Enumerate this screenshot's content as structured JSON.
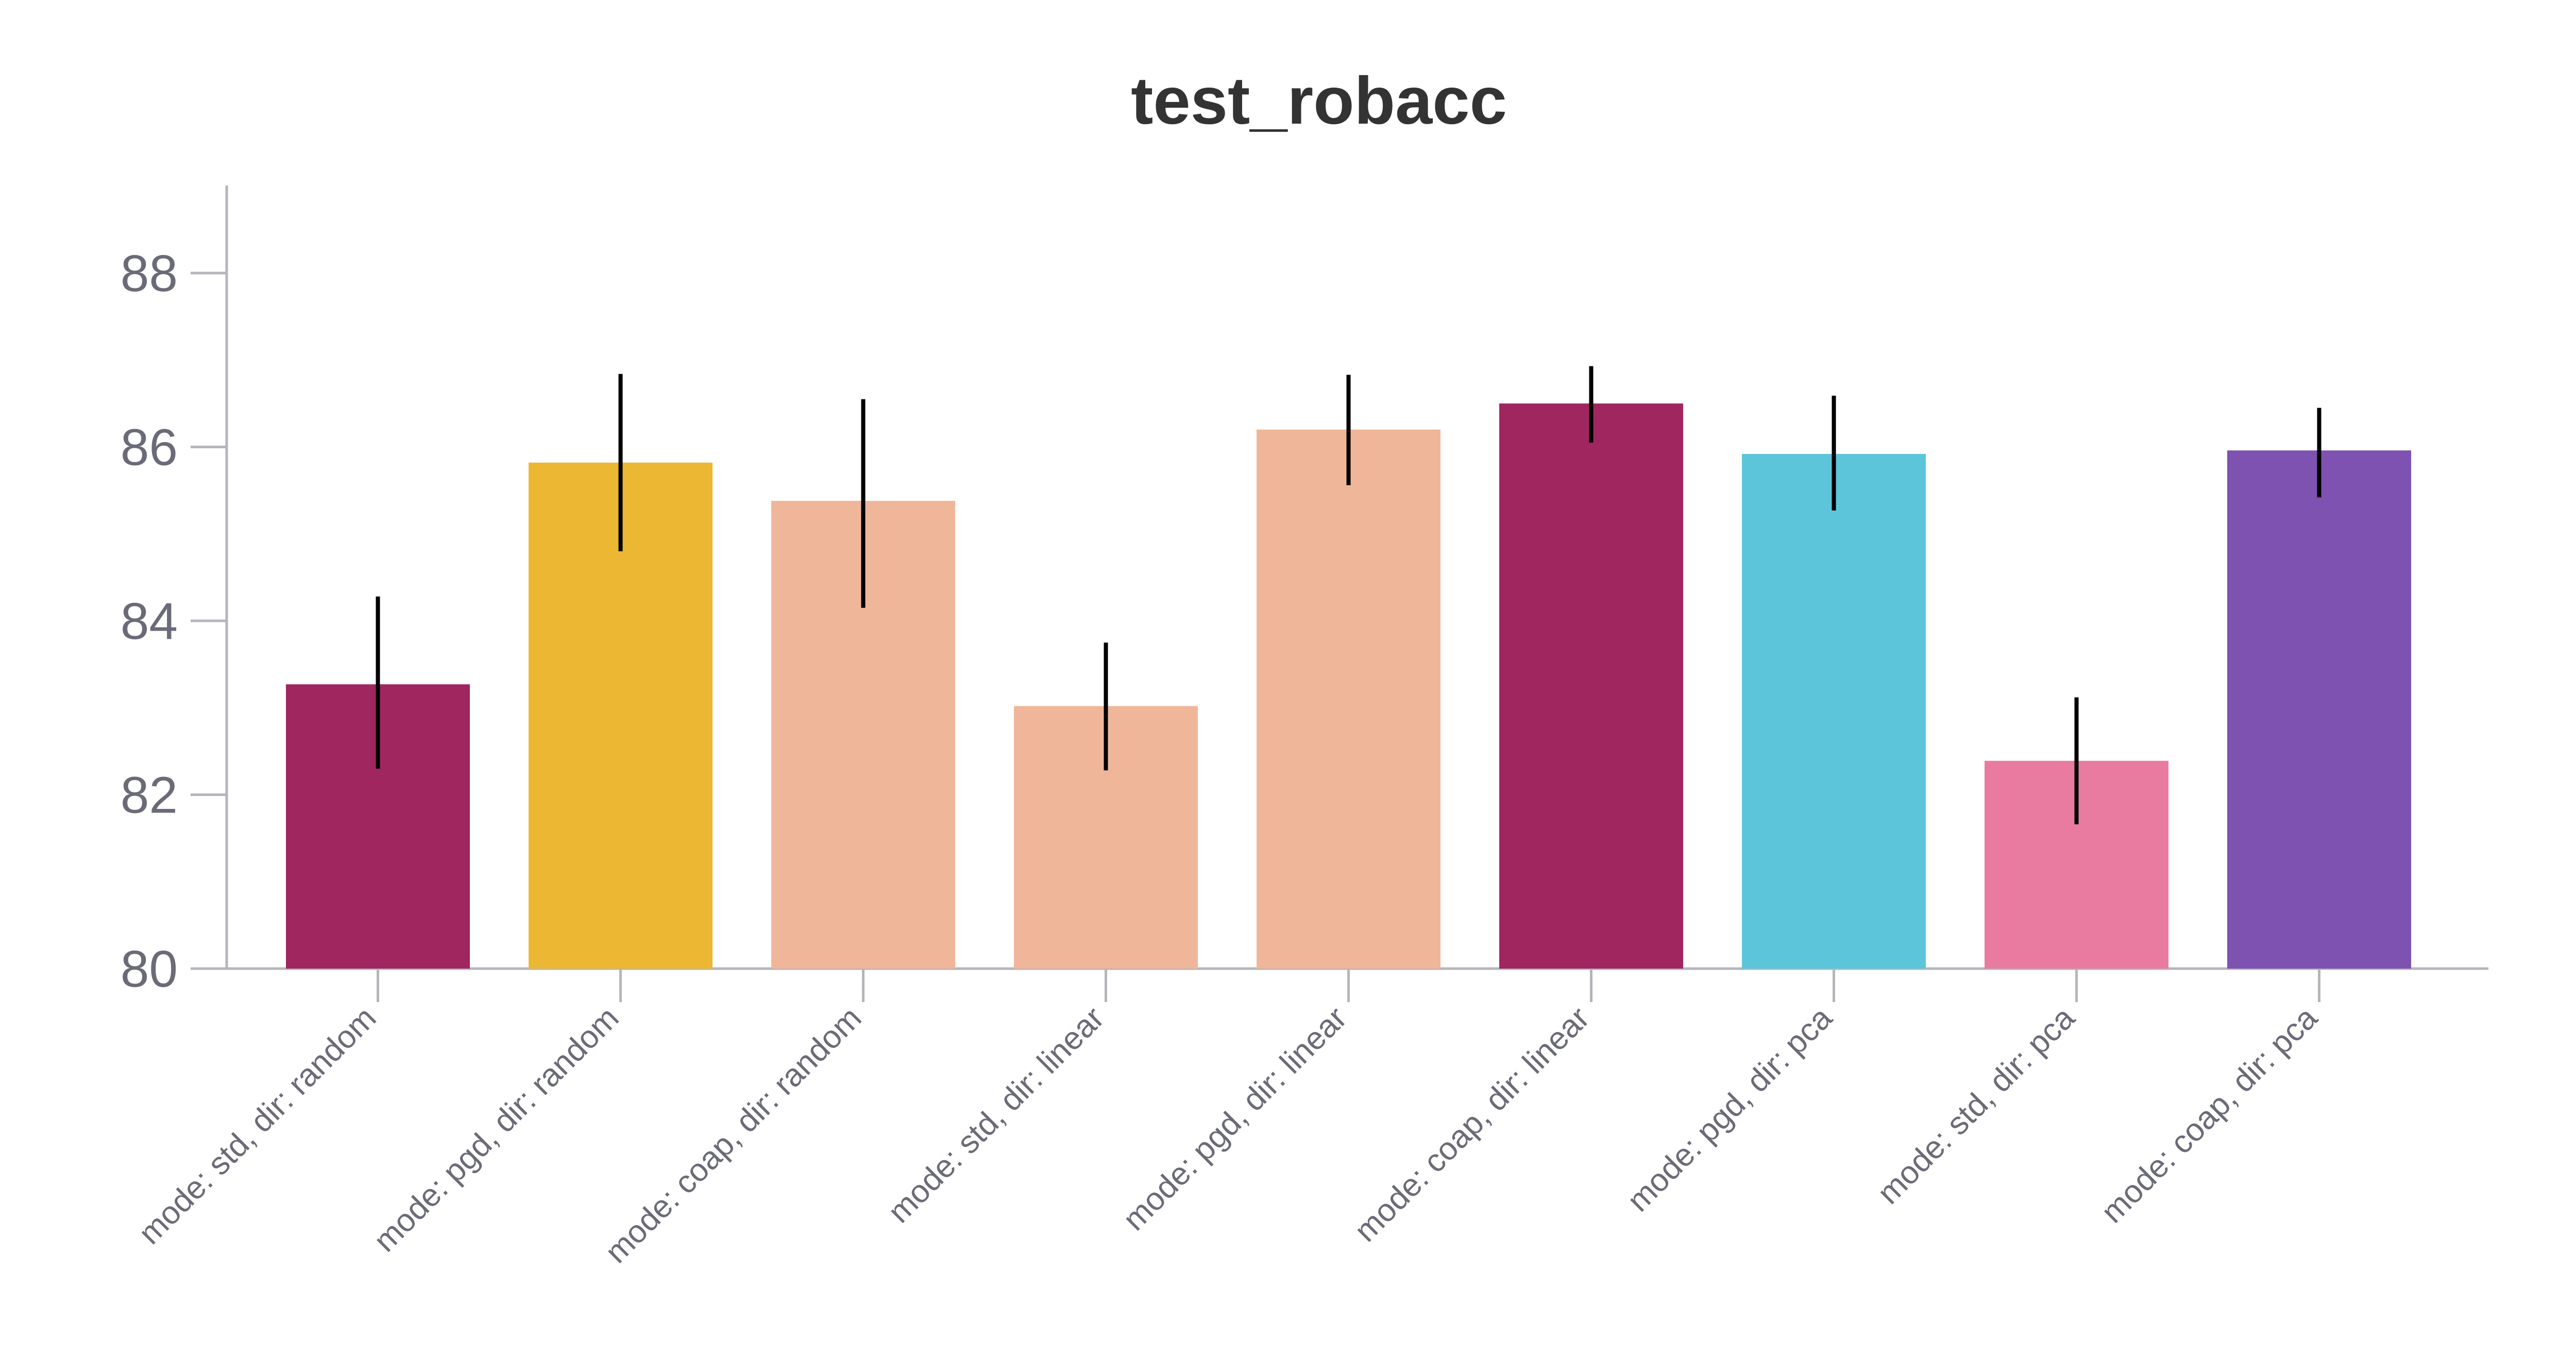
{
  "chart_data": {
    "type": "bar",
    "title": "test_robacc",
    "xlabel": "",
    "ylabel": "",
    "ylim": [
      80,
      89
    ],
    "yticks": [
      80,
      82,
      84,
      86,
      88
    ],
    "grid": false,
    "legend": "none",
    "categories": [
      "mode: std, dir: random",
      "mode: pgd, dir: random",
      "mode: coap, dir: random",
      "mode: std, dir: linear",
      "mode: pgd, dir: linear",
      "mode: coap, dir: linear",
      "mode: pgd, dir: pca",
      "mode: std, dir: pca",
      "mode: coap, dir: pca"
    ],
    "values": [
      83.27,
      85.82,
      85.38,
      83.02,
      86.2,
      86.5,
      85.92,
      82.39,
      85.96
    ],
    "error_low": [
      82.3,
      84.8,
      84.15,
      82.28,
      85.56,
      86.05,
      85.27,
      81.66,
      85.42
    ],
    "error_high": [
      84.28,
      86.84,
      86.55,
      83.75,
      86.83,
      86.93,
      86.59,
      83.12,
      86.45
    ],
    "colors": [
      "#a02660",
      "#ecb733",
      "#f0b69a",
      "#f0b69a",
      "#f0b69a",
      "#a02660",
      "#5dc5da",
      "#e97ba0",
      "#7d52b1"
    ],
    "error_bar_color": "#000000"
  }
}
